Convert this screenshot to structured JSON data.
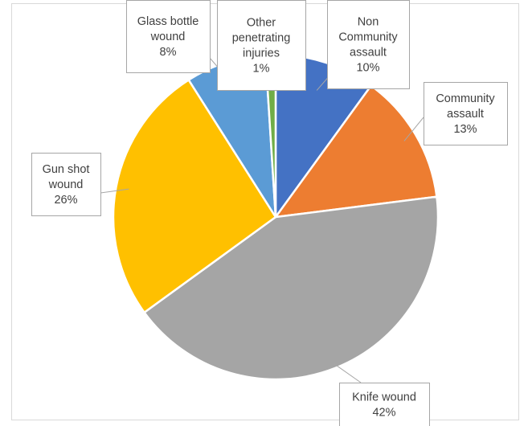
{
  "chart_data": {
    "type": "pie",
    "title": "",
    "slices": [
      {
        "label": [
          "Non",
          "Community",
          "assault"
        ],
        "percent_label": "10%",
        "value": 10,
        "color": "#4472c4"
      },
      {
        "label": [
          "Community",
          "assault"
        ],
        "percent_label": "13%",
        "value": 13,
        "color": "#ed7d31"
      },
      {
        "label": [
          "Knife wound"
        ],
        "percent_label": "42%",
        "value": 42,
        "color": "#a5a5a5"
      },
      {
        "label": [
          "Gun shot",
          "wound"
        ],
        "percent_label": "26%",
        "value": 26,
        "color": "#ffc000"
      },
      {
        "label": [
          "Glass bottle",
          "wound"
        ],
        "percent_label": "8%",
        "value": 8,
        "color": "#5b9bd5"
      },
      {
        "label": [
          "Other",
          "penetrating",
          "injuries"
        ],
        "percent_label": "1%",
        "value": 1,
        "color": "#70ad47"
      }
    ],
    "legend": false,
    "data_labels": "callouts"
  }
}
